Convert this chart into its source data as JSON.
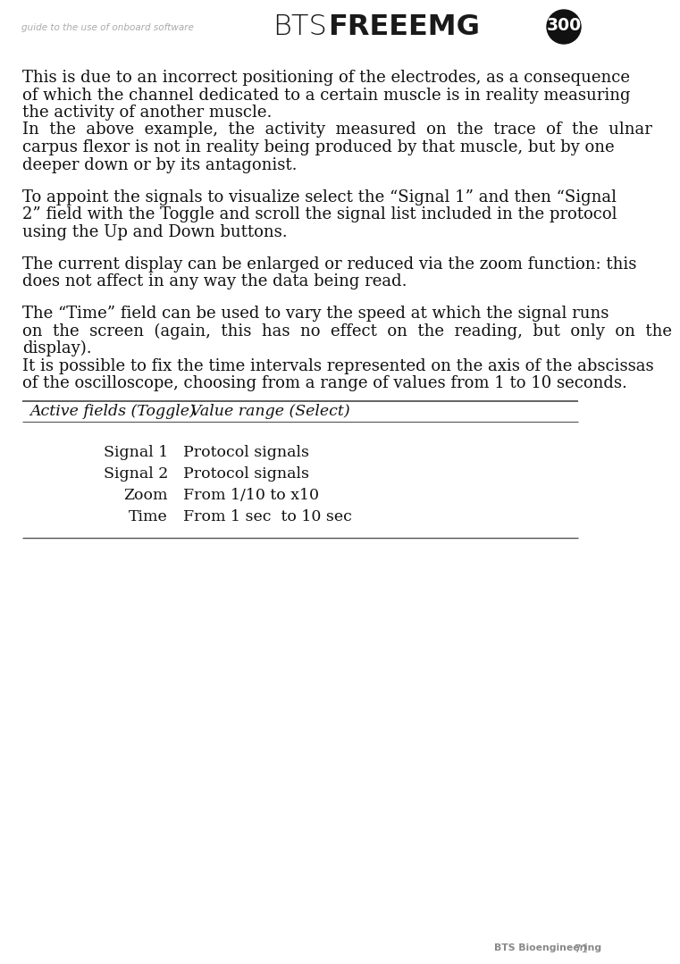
{
  "bg_color": "#ffffff",
  "header_text_left": "guide to the use of onboard software",
  "page_num": "71",
  "page_label": "BTS Bioengineering",
  "p1_lines": [
    "This is due to an incorrect positioning of the electrodes, as a consequence",
    "of which the channel dedicated to a certain muscle is in reality measuring",
    "the activity of another muscle."
  ],
  "p2_lines": [
    "In  the  above  example,  the  activity  measured  on  the  trace  of  the  ulnar",
    "carpus flexor is not in reality being produced by that muscle, but by one",
    "deeper down or by its antagonist."
  ],
  "p3_lines": [
    "To appoint the signals to visualize select the “Signal 1” and then “Signal",
    "2” field with the Toggle and scroll the signal list included in the protocol",
    "using the Up and Down buttons."
  ],
  "p4_lines": [
    "The current display can be enlarged or reduced via the zoom function: this",
    "does not affect in any way the data being read."
  ],
  "p5_lines": [
    "The “Time” field can be used to vary the speed at which the signal runs",
    "on  the  screen  (again,  this  has  no  effect  on  the  reading,  but  only  on  the",
    "display).",
    "It is possible to fix the time intervals represented on the axis of the abscissas",
    "of the oscilloscope, choosing from a range of values from 1 to 10 seconds."
  ],
  "table_header_col1": "Active fields (Toggle)",
  "table_header_col2": "Value range (Select)",
  "table_rows": [
    [
      "Signal 1",
      "Protocol signals"
    ],
    [
      "Signal 2",
      "Protocol signals"
    ],
    [
      "Zoom",
      "From 1/10 to x10"
    ],
    [
      "Time",
      "From 1 sec  to 10 sec"
    ]
  ],
  "text_color": "#111111",
  "header_gray": "#aaaaaa",
  "logo_bts": "BTS",
  "logo_free": "FREE",
  "logo_emg": "EMG",
  "logo_300": "300"
}
